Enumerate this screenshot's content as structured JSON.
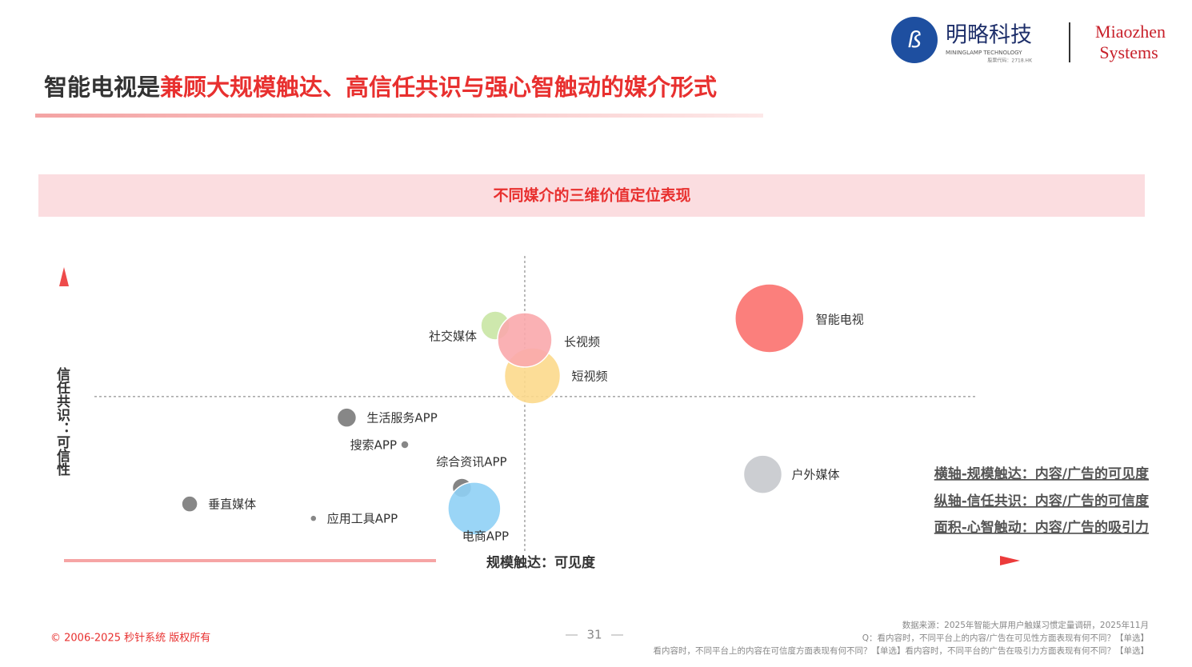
{
  "header": {
    "title_black": "智能电视是",
    "title_red": "兼顾大规模触达、高信任共识与强心智触动的媒介形式",
    "logo_name": "明略科技",
    "logo_sub": "MININGLAMP TECHNOLOGY",
    "logo_code": "股票代码：2718.HK",
    "brand_1": "Miaozhen",
    "brand_2": "Systems"
  },
  "chart_data": {
    "type": "bubble",
    "title": "不同媒介的三维价值定位表现",
    "x_label": "规模触达：可见度",
    "y_label": "信任共识：可信性",
    "xlim": [
      0,
      100
    ],
    "ylim": [
      0,
      100
    ],
    "x_reference": 48.4,
    "y_reference": 56.7,
    "points": [
      {
        "name": "智能电视",
        "x": 74.1,
        "y": 83.9,
        "size": 43,
        "color": "#fb716e"
      },
      {
        "name": "社交媒体",
        "x": 45.3,
        "y": 81.4,
        "size": 18,
        "color": "#c9e6a4"
      },
      {
        "name": "短视频",
        "x": 49.2,
        "y": 63.9,
        "size": 35,
        "color": "#fcd98c"
      },
      {
        "name": "长视频",
        "x": 48.4,
        "y": 76.4,
        "size": 34,
        "color": "#f9a9ac"
      },
      {
        "name": "生活服务APP",
        "x": 29.7,
        "y": 49.4,
        "size": 12,
        "color": "#7a7a7a"
      },
      {
        "name": "搜索APP",
        "x": 35.8,
        "y": 40,
        "size": 5,
        "color": "#7a7a7a"
      },
      {
        "name": "综合资讯APP",
        "x": 41.8,
        "y": 25,
        "size": 12,
        "color": "#777777"
      },
      {
        "name": "电商APP",
        "x": 43.1,
        "y": 17.8,
        "size": 33,
        "color": "#8fd0f5"
      },
      {
        "name": "垂直媒体",
        "x": 13.2,
        "y": 19.4,
        "size": 10,
        "color": "#7a7a7a"
      },
      {
        "name": "应用工具APP",
        "x": 26.2,
        "y": 14.4,
        "size": 4,
        "color": "#7a7a7a"
      },
      {
        "name": "户外媒体",
        "x": 73.4,
        "y": 29.7,
        "size": 24,
        "color": "#c6c9cd"
      }
    ],
    "notes": [
      "横轴-规模触达：内容/广告的可见度",
      "纵轴-信任共识：内容/广告的可信度",
      "面积-心智触动：内容/广告的吸引力"
    ]
  },
  "footer": {
    "copyright": "© 2006-2025 秒针系统 版权所有",
    "page": "31",
    "source": [
      "数据来源：2025年智能大屏用户触媒习惯定量调研，2025年11月",
      "Q：看内容时，不同平台上的内容/广告在可见性方面表现有何不同？【单选】",
      "看内容时，不同平台上的内容在可信度方面表现有何不同？【单选】看内容时，不同平台的广告在吸引力方面表现有何不同？【单选】"
    ]
  }
}
